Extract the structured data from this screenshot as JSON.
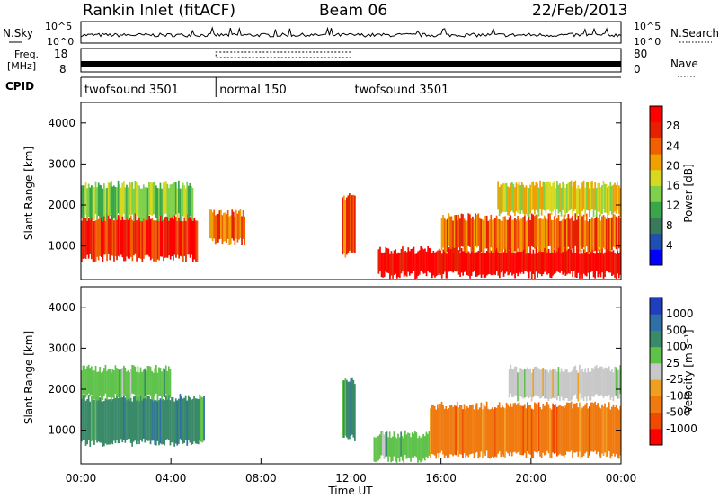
{
  "header": {
    "title": "Rankin Inlet (fitACF)",
    "beam": "Beam 06",
    "date": "22/Feb/2013"
  },
  "top_panels": {
    "nsky_label": "N.Sky",
    "nsky_ticks": [
      "10^5",
      "10^0"
    ],
    "nsearch_label": "N.Search",
    "nsearch_ticks": [
      "10^5",
      "10^0"
    ],
    "freq_label": "Freq.",
    "freq_unit": "[MHz]",
    "freq_ticks": [
      "18",
      "8"
    ],
    "nave_label": "Nave",
    "nave_ticks": [
      "80",
      "0"
    ],
    "cpid_label": "CPID"
  },
  "cpid_segments": [
    {
      "label": "twofsound 3501",
      "start_hour": 0,
      "end_hour": 6
    },
    {
      "label": "normal 150",
      "start_hour": 6,
      "end_hour": 12
    },
    {
      "label": "twofsound 3501",
      "start_hour": 12,
      "end_hour": 24
    }
  ],
  "x_axis": {
    "label": "Time UT",
    "ticks": [
      "00:00",
      "04:00",
      "08:00",
      "12:00",
      "16:00",
      "20:00",
      "00:00"
    ],
    "range_hours": [
      0,
      24
    ]
  },
  "power_panel": {
    "ylabel": "Slant Range [km]",
    "yticks": [
      "4000",
      "3000",
      "2000",
      "1000"
    ],
    "colorbar_label": "Power [dB]",
    "colorbar_ticks": [
      "28",
      "24",
      "20",
      "16",
      "12",
      "8",
      "4"
    ],
    "colors": [
      "#0000ff",
      "#1f4fb0",
      "#3a7a5a",
      "#3aa64a",
      "#7fd04a",
      "#d8d820",
      "#f0a000",
      "#f06000",
      "#e62000",
      "#ff0000"
    ]
  },
  "velocity_panel": {
    "ylabel": "Slant Range [km]",
    "yticks": [
      "4000",
      "3000",
      "2000",
      "1000"
    ],
    "colorbar_label": "Velocity [m s⁻¹]",
    "colorbar_ticks": [
      "1000",
      "500",
      "100",
      "25",
      "-25",
      "-100",
      "-500",
      "-1000"
    ],
    "colors": [
      "#1f3fbf",
      "#2f6fa8",
      "#3a8a6a",
      "#5fc24a",
      "#c8c8c8",
      "#f0a020",
      "#f07a10",
      "#f04a00",
      "#ff0000"
    ]
  },
  "chart_data": {
    "type": "heatmap",
    "x": "Time UT (hours)",
    "y": "Slant Range (km)",
    "xlim": [
      0,
      24
    ],
    "ylim": [
      180,
      4500
    ],
    "power_regions": [
      {
        "t0": 0.0,
        "t1": 5.2,
        "r0": 700,
        "r1": 1700,
        "level_db": 24
      },
      {
        "t0": 0.0,
        "t1": 5.0,
        "r0": 1700,
        "r1": 2500,
        "level_db": 12
      },
      {
        "t0": 5.7,
        "t1": 7.3,
        "r0": 1100,
        "r1": 1800,
        "level_db": 20
      },
      {
        "t0": 11.6,
        "t1": 12.2,
        "r0": 800,
        "r1": 2200,
        "level_db": 22
      },
      {
        "t0": 13.2,
        "t1": 24.0,
        "r0": 300,
        "r1": 900,
        "level_db": 26
      },
      {
        "t0": 16.0,
        "t1": 24.0,
        "r0": 900,
        "r1": 1700,
        "level_db": 22
      },
      {
        "t0": 18.5,
        "t1": 24.0,
        "r0": 1800,
        "r1": 2500,
        "level_db": 16
      }
    ],
    "velocity_regions": [
      {
        "t0": 0.0,
        "t1": 5.5,
        "r0": 700,
        "r1": 1800,
        "velocity": 150
      },
      {
        "t0": 0.0,
        "t1": 4.0,
        "r0": 1800,
        "r1": 2500,
        "velocity": 50
      },
      {
        "t0": 11.6,
        "t1": 12.2,
        "r0": 800,
        "r1": 2200,
        "velocity": 150
      },
      {
        "t0": 13.0,
        "t1": 15.5,
        "r0": 300,
        "r1": 900,
        "velocity": 60
      },
      {
        "t0": 15.5,
        "t1": 24.0,
        "r0": 400,
        "r1": 1600,
        "velocity": -150
      },
      {
        "t0": 19.0,
        "t1": 24.0,
        "r0": 1800,
        "r1": 2500,
        "velocity": 0
      }
    ]
  }
}
